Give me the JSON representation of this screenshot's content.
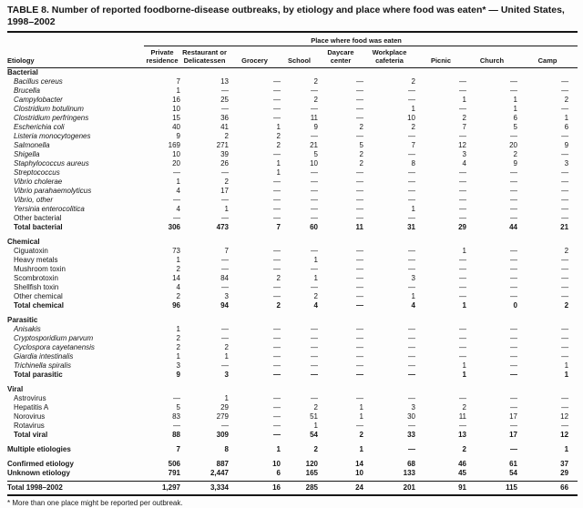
{
  "title": "TABLE 8. Number of reported foodborne-disease outbreaks, by etiology and place where food was eaten* — United States, 1998–2002",
  "footnote": "* More than one place might be reported per outbreak.",
  "table": {
    "spanner_label": "Place where food was eaten",
    "etiology_header": "Etiology",
    "place_columns": [
      "Private residence",
      "Restaurant or Delicatessen",
      "Grocery",
      "School",
      "Daycare center",
      "Workplace cafeteria",
      "Picnic",
      "Church",
      "Camp"
    ],
    "rows": [
      {
        "label": "Bacterial",
        "type": "section"
      },
      {
        "label": "Bacillus cereus",
        "type": "item",
        "italic": true,
        "values": [
          "7",
          "13",
          "—",
          "2",
          "—",
          "2",
          "—",
          "—",
          "—"
        ]
      },
      {
        "label": "Brucella",
        "type": "item",
        "italic": true,
        "values": [
          "1",
          "—",
          "—",
          "—",
          "—",
          "—",
          "—",
          "—",
          "—"
        ]
      },
      {
        "label": "Campylobacter",
        "type": "item",
        "italic": true,
        "values": [
          "16",
          "25",
          "—",
          "2",
          "—",
          "—",
          "1",
          "1",
          "2"
        ]
      },
      {
        "label": "Clostridium botulinum",
        "type": "item",
        "italic": true,
        "values": [
          "10",
          "—",
          "—",
          "—",
          "—",
          "1",
          "—",
          "1",
          "—"
        ]
      },
      {
        "label": "Clostridium perfringens",
        "type": "item",
        "italic": true,
        "values": [
          "15",
          "36",
          "—",
          "11",
          "—",
          "10",
          "2",
          "6",
          "1"
        ]
      },
      {
        "label": "Escherichia coli",
        "type": "item",
        "italic": true,
        "values": [
          "40",
          "41",
          "1",
          "9",
          "2",
          "2",
          "7",
          "5",
          "6"
        ]
      },
      {
        "label": "Listeria monocytogenes",
        "type": "item",
        "italic": true,
        "values": [
          "9",
          "2",
          "2",
          "—",
          "—",
          "—",
          "—",
          "—",
          "—"
        ]
      },
      {
        "label": "Salmonella",
        "type": "item",
        "italic": true,
        "values": [
          "169",
          "271",
          "2",
          "21",
          "5",
          "7",
          "12",
          "20",
          "9"
        ]
      },
      {
        "label": "Shigella",
        "type": "item",
        "italic": true,
        "values": [
          "10",
          "39",
          "—",
          "5",
          "2",
          "—",
          "3",
          "2",
          "—"
        ]
      },
      {
        "label": "Staphylococcus aureus",
        "type": "item",
        "italic": true,
        "values": [
          "20",
          "26",
          "1",
          "10",
          "2",
          "8",
          "4",
          "9",
          "3"
        ]
      },
      {
        "label": "Streptococcus",
        "type": "item",
        "italic": true,
        "values": [
          "—",
          "—",
          "1",
          "—",
          "—",
          "—",
          "—",
          "—",
          "—"
        ]
      },
      {
        "label": "Vibrio cholerae",
        "type": "item",
        "italic": true,
        "values": [
          "1",
          "2",
          "—",
          "—",
          "—",
          "—",
          "—",
          "—",
          "—"
        ]
      },
      {
        "label": "Vibrio parahaemolyticus",
        "type": "item",
        "italic": true,
        "values": [
          "4",
          "17",
          "—",
          "—",
          "—",
          "—",
          "—",
          "—",
          "—"
        ]
      },
      {
        "label": "Vibrio, other",
        "type": "item",
        "italic": true,
        "values": [
          "—",
          "—",
          "—",
          "—",
          "—",
          "—",
          "—",
          "—",
          "—"
        ]
      },
      {
        "label": "Yersinia enterocolitica",
        "type": "item",
        "italic": true,
        "values": [
          "4",
          "1",
          "—",
          "—",
          "—",
          "1",
          "—",
          "—",
          "—"
        ]
      },
      {
        "label": "Other bacterial",
        "type": "item",
        "values": [
          "—",
          "—",
          "—",
          "—",
          "—",
          "—",
          "—",
          "—",
          "—"
        ]
      },
      {
        "label": "Total bacterial",
        "type": "total",
        "values": [
          "306",
          "473",
          "7",
          "60",
          "11",
          "31",
          "29",
          "44",
          "21"
        ]
      },
      {
        "label": "Chemical",
        "type": "section",
        "spacer": true
      },
      {
        "label": "Ciguatoxin",
        "type": "item",
        "values": [
          "73",
          "7",
          "—",
          "—",
          "—",
          "—",
          "1",
          "—",
          "2"
        ]
      },
      {
        "label": "Heavy metals",
        "type": "item",
        "values": [
          "1",
          "—",
          "—",
          "1",
          "—",
          "—",
          "—",
          "—",
          "—"
        ]
      },
      {
        "label": "Mushroom toxin",
        "type": "item",
        "values": [
          "2",
          "—",
          "—",
          "—",
          "—",
          "—",
          "—",
          "—",
          "—"
        ]
      },
      {
        "label": "Scombrotoxin",
        "type": "item",
        "values": [
          "14",
          "84",
          "2",
          "1",
          "—",
          "3",
          "—",
          "—",
          "—"
        ]
      },
      {
        "label": "Shellfish toxin",
        "type": "item",
        "values": [
          "4",
          "—",
          "—",
          "—",
          "—",
          "—",
          "—",
          "—",
          "—"
        ]
      },
      {
        "label": "Other chemical",
        "type": "item",
        "values": [
          "2",
          "3",
          "—",
          "2",
          "—",
          "1",
          "—",
          "—",
          "—"
        ]
      },
      {
        "label": "Total chemical",
        "type": "total",
        "values": [
          "96",
          "94",
          "2",
          "4",
          "—",
          "4",
          "1",
          "0",
          "2"
        ]
      },
      {
        "label": "Parasitic",
        "type": "section",
        "spacer": true
      },
      {
        "label": "Anisakis",
        "type": "item",
        "italic": true,
        "values": [
          "1",
          "—",
          "—",
          "—",
          "—",
          "—",
          "—",
          "—",
          "—"
        ]
      },
      {
        "label": "Cryptosporidium parvum",
        "type": "item",
        "italic": true,
        "values": [
          "2",
          "—",
          "—",
          "—",
          "—",
          "—",
          "—",
          "—",
          "—"
        ]
      },
      {
        "label": "Cyclospora cayetanensis",
        "type": "item",
        "italic": true,
        "values": [
          "2",
          "2",
          "—",
          "—",
          "—",
          "—",
          "—",
          "—",
          "—"
        ]
      },
      {
        "label": "Giardia intestinalis",
        "type": "item",
        "italic": true,
        "values": [
          "1",
          "1",
          "—",
          "—",
          "—",
          "—",
          "—",
          "—",
          "—"
        ]
      },
      {
        "label": "Trichinella spiralis",
        "type": "item",
        "italic": true,
        "values": [
          "3",
          "—",
          "—",
          "—",
          "—",
          "—",
          "1",
          "—",
          "1"
        ]
      },
      {
        "label": "Total parasitic",
        "type": "total",
        "values": [
          "9",
          "3",
          "—",
          "—",
          "—",
          "—",
          "1",
          "—",
          "1"
        ]
      },
      {
        "label": "Viral",
        "type": "section",
        "spacer": true
      },
      {
        "label": "Astrovirus",
        "type": "item",
        "values": [
          "—",
          "1",
          "—",
          "—",
          "—",
          "—",
          "—",
          "—",
          "—"
        ]
      },
      {
        "label": "Hepatitis A",
        "type": "item",
        "values": [
          "5",
          "29",
          "—",
          "2",
          "1",
          "3",
          "2",
          "—",
          "—"
        ]
      },
      {
        "label": "Norovirus",
        "type": "item",
        "values": [
          "83",
          "279",
          "—",
          "51",
          "1",
          "30",
          "11",
          "17",
          "12"
        ]
      },
      {
        "label": "Rotavirus",
        "type": "item",
        "values": [
          "—",
          "—",
          "—",
          "1",
          "—",
          "—",
          "—",
          "—",
          "—"
        ]
      },
      {
        "label": "Total viral",
        "type": "total",
        "values": [
          "88",
          "309",
          "—",
          "54",
          "2",
          "33",
          "13",
          "17",
          "12"
        ]
      },
      {
        "label": "Multiple etiologies",
        "type": "flush",
        "spacer": true,
        "values": [
          "7",
          "8",
          "1",
          "2",
          "1",
          "—",
          "2",
          "—",
          "1"
        ]
      },
      {
        "label": "Confirmed etiology",
        "type": "flush",
        "spacer": true,
        "values": [
          "506",
          "887",
          "10",
          "120",
          "14",
          "68",
          "46",
          "61",
          "37"
        ]
      },
      {
        "label": "Unknown etiology",
        "type": "flush",
        "pad_bottom": true,
        "values": [
          "791",
          "2,447",
          "6",
          "165",
          "10",
          "133",
          "45",
          "54",
          "29"
        ]
      },
      {
        "label": "Total 1998–2002",
        "type": "grand",
        "values": [
          "1,297",
          "3,334",
          "16",
          "285",
          "24",
          "201",
          "91",
          "115",
          "66"
        ]
      }
    ]
  }
}
